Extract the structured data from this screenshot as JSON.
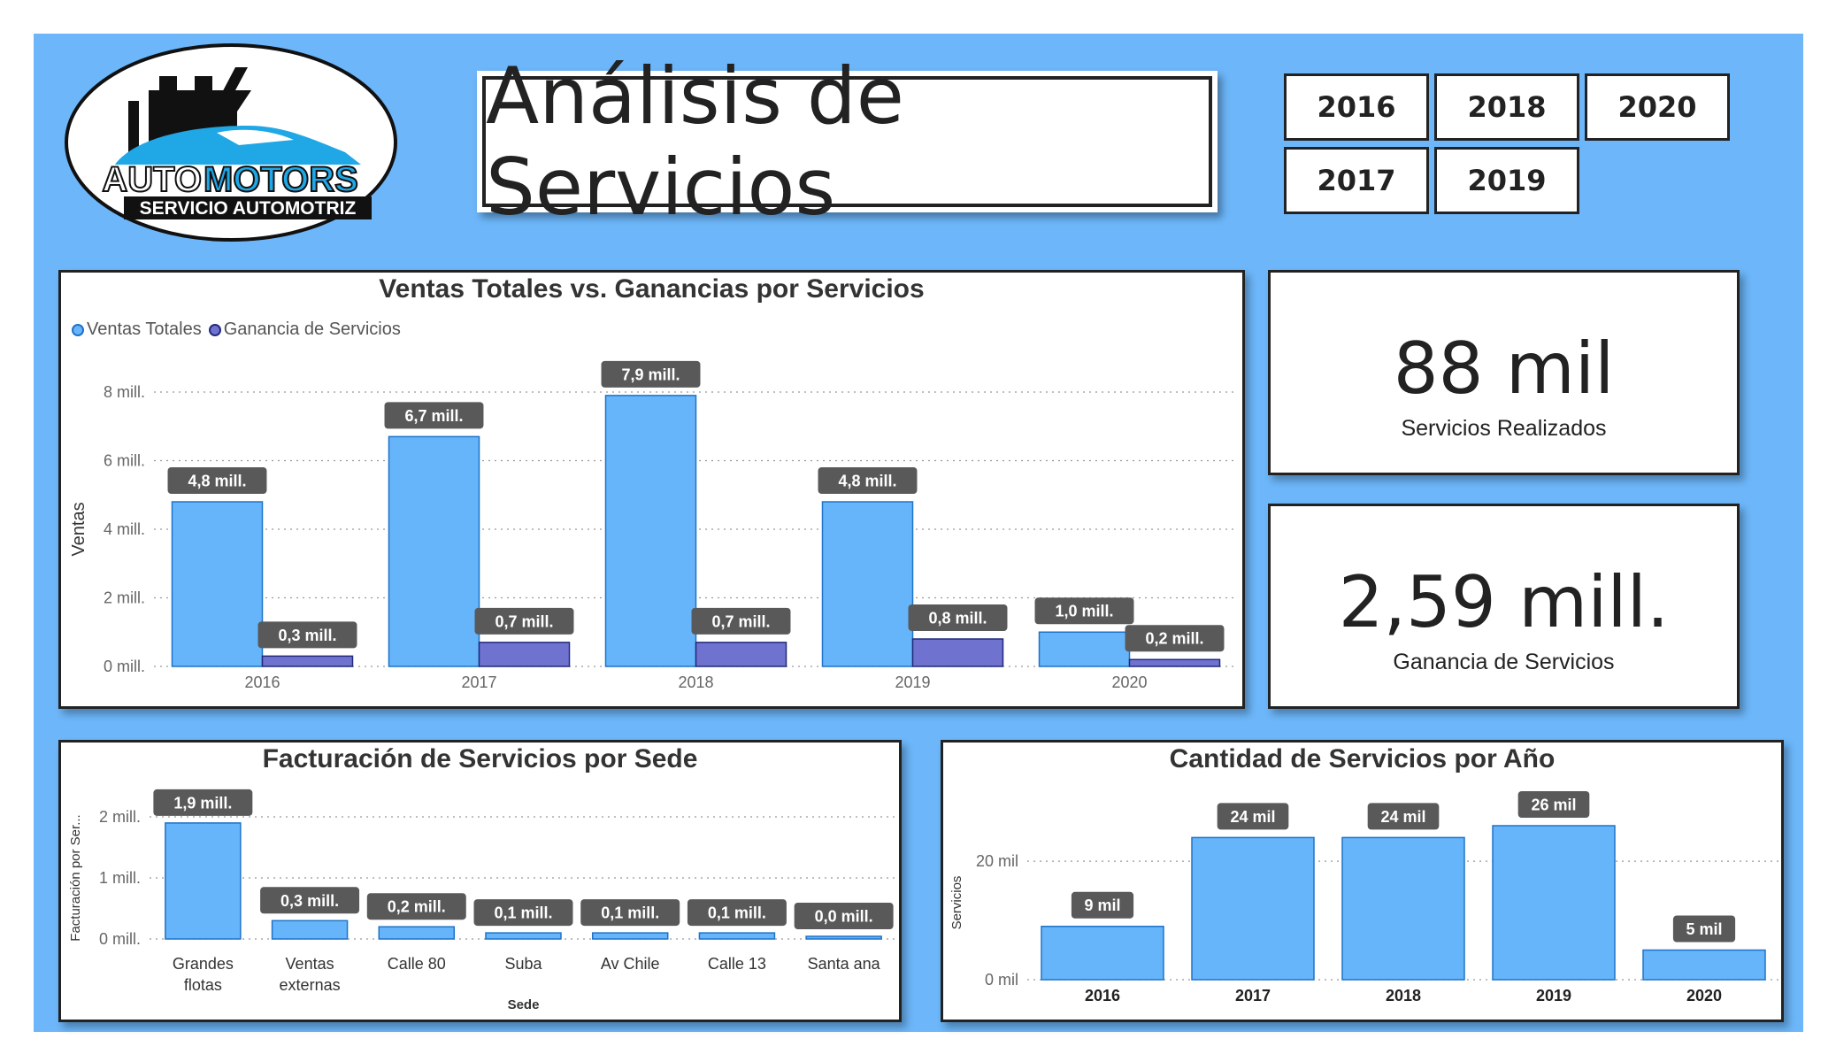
{
  "header": {
    "logo": {
      "line1": "AUTO",
      "line1b": "MOTORS",
      "line2": "SERVICIO AUTOMOTRIZ"
    },
    "title": "Análisis de Servicios"
  },
  "year_filters": [
    "2016",
    "2018",
    "2020",
    "2017",
    "2019"
  ],
  "kpis": {
    "servicios": {
      "value": "88 mil",
      "label": "Servicios Realizados"
    },
    "ganancia": {
      "value": "2,59 mill.",
      "label": "Ganancia de Servicios"
    }
  },
  "colors": {
    "background": "#6CB6F9",
    "series1": "#66B5FB",
    "series2": "#6F73CF",
    "label_bg": "#595959"
  },
  "chart_data": [
    {
      "type": "bar",
      "title": "Ventas Totales vs. Ganancias por Servicios",
      "ylabel": "Ventas",
      "xlabel": "",
      "legend": "top-left",
      "categories": [
        "2016",
        "2017",
        "2018",
        "2019",
        "2020"
      ],
      "series": [
        {
          "name": "Ventas Totales",
          "values": [
            4.8,
            6.7,
            7.9,
            4.8,
            1.0
          ],
          "labels": [
            "4,8 mill.",
            "6,7 mill.",
            "7,9 mill.",
            "4,8 mill.",
            "1,0 mill."
          ]
        },
        {
          "name": "Ganancia de Servicios",
          "values": [
            0.3,
            0.7,
            0.7,
            0.8,
            0.2
          ],
          "labels": [
            "0,3 mill.",
            "0,7 mill.",
            "0,7 mill.",
            "0,8 mill.",
            "0,2 mill."
          ]
        }
      ],
      "yticks": [
        0,
        2,
        4,
        6,
        8
      ],
      "ytick_labels": [
        "0 mill.",
        "2 mill.",
        "4 mill.",
        "6 mill.",
        "8 mill."
      ],
      "ylim": [
        0,
        8
      ],
      "grid": true
    },
    {
      "type": "bar",
      "title": "Facturación de Servicios por Sede",
      "ylabel": "Facturación por Ser...",
      "xlabel": "Sede",
      "categories": [
        "Grandes flotas",
        "Ventas externas",
        "Calle 80",
        "Suba",
        "Av Chile",
        "Calle 13",
        "Santa ana"
      ],
      "values": [
        1.9,
        0.3,
        0.2,
        0.1,
        0.1,
        0.1,
        0.0
      ],
      "labels": [
        "1,9 mill.",
        "0,3 mill.",
        "0,2 mill.",
        "0,1 mill.",
        "0,1 mill.",
        "0,1 mill.",
        "0,0 mill."
      ],
      "yticks": [
        0,
        1,
        2
      ],
      "ytick_labels": [
        "0 mill.",
        "1 mill.",
        "2 mill."
      ],
      "ylim": [
        0,
        2
      ],
      "grid": true
    },
    {
      "type": "bar",
      "title": "Cantidad de Servicios por Año",
      "ylabel": "Servicios",
      "xlabel": "",
      "categories": [
        "2016",
        "2017",
        "2018",
        "2019",
        "2020"
      ],
      "values": [
        9,
        24,
        24,
        26,
        5
      ],
      "labels": [
        "9 mil",
        "24 mil",
        "24 mil",
        "26 mil",
        "5 mil"
      ],
      "yticks": [
        0,
        20
      ],
      "ytick_labels": [
        "0 mil",
        "20 mil"
      ],
      "ylim": [
        0,
        26
      ],
      "grid": true
    }
  ]
}
